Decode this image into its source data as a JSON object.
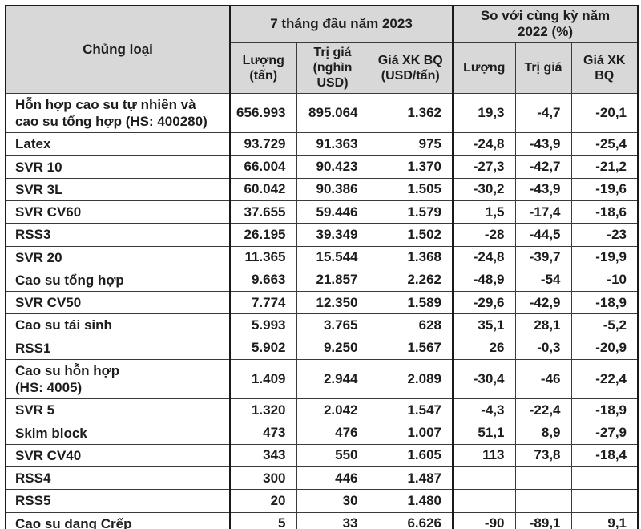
{
  "table": {
    "category_header": "Chủng loại",
    "group_2023": {
      "label": "7 tháng đầu năm 2023",
      "cols": [
        "Lượng\n(tấn)",
        "Trị giá\n(nghìn\nUSD)",
        "Giá XK BQ\n(USD/tấn)"
      ]
    },
    "group_yoy": {
      "label": "So với cùng kỳ năm\n2022 (%)",
      "cols": [
        "Lượng",
        "Trị giá",
        "Giá XK\nBQ"
      ]
    },
    "rows": [
      {
        "label": "Hỗn hợp cao su tự nhiên và\ncao su tổng hợp (HS: 400280)",
        "values": [
          "656.993",
          "895.064",
          "1.362",
          "19,3",
          "-4,7",
          "-20,1"
        ]
      },
      {
        "label": "Latex",
        "values": [
          "93.729",
          "91.363",
          "975",
          "-24,8",
          "-43,9",
          "-25,4"
        ]
      },
      {
        "label": "SVR 10",
        "values": [
          "66.004",
          "90.423",
          "1.370",
          "-27,3",
          "-42,7",
          "-21,2"
        ]
      },
      {
        "label": "SVR 3L",
        "values": [
          "60.042",
          "90.386",
          "1.505",
          "-30,2",
          "-43,9",
          "-19,6"
        ]
      },
      {
        "label": "SVR CV60",
        "values": [
          "37.655",
          "59.446",
          "1.579",
          "1,5",
          "-17,4",
          "-18,6"
        ]
      },
      {
        "label": "RSS3",
        "values": [
          "26.195",
          "39.349",
          "1.502",
          "-28",
          "-44,5",
          "-23"
        ]
      },
      {
        "label": "SVR 20",
        "values": [
          "11.365",
          "15.544",
          "1.368",
          "-24,8",
          "-39,7",
          "-19,9"
        ]
      },
      {
        "label": "Cao su tổng hợp",
        "values": [
          "9.663",
          "21.857",
          "2.262",
          "-48,9",
          "-54",
          "-10"
        ]
      },
      {
        "label": "SVR CV50",
        "values": [
          "7.774",
          "12.350",
          "1.589",
          "-29,6",
          "-42,9",
          "-18,9"
        ]
      },
      {
        "label": "Cao su tái sinh",
        "values": [
          "5.993",
          "3.765",
          "628",
          "35,1",
          "28,1",
          "-5,2"
        ]
      },
      {
        "label": "RSS1",
        "values": [
          "5.902",
          "9.250",
          "1.567",
          "26",
          "-0,3",
          "-20,9"
        ]
      },
      {
        "label": "Cao su hỗn hợp\n(HS: 4005)",
        "values": [
          "1.409",
          "2.944",
          "2.089",
          "-30,4",
          "-46",
          "-22,4"
        ]
      },
      {
        "label": "SVR 5",
        "values": [
          "1.320",
          "2.042",
          "1.547",
          "-4,3",
          "-22,4",
          "-18,9"
        ]
      },
      {
        "label": "Skim block",
        "values": [
          "473",
          "476",
          "1.007",
          "51,1",
          "8,9",
          "-27,9"
        ]
      },
      {
        "label": "SVR CV40",
        "values": [
          "343",
          "550",
          "1.605",
          "113",
          "73,8",
          "-18,4"
        ]
      },
      {
        "label": "RSS4",
        "values": [
          "300",
          "446",
          "1.487",
          "",
          "",
          ""
        ]
      },
      {
        "label": "RSS5",
        "values": [
          "20",
          "30",
          "1.480",
          "",
          "",
          ""
        ]
      },
      {
        "label": "Cao su dạng Crếp",
        "values": [
          "5",
          "33",
          "6.626",
          "-90",
          "-89,1",
          "9,1"
        ]
      }
    ]
  },
  "chart_data": {
    "type": "table",
    "title": "",
    "column_groups": [
      "7 tháng đầu năm 2023",
      "So với cùng kỳ năm 2022 (%)"
    ],
    "columns": [
      "Chủng loại",
      "Lượng (tấn)",
      "Trị giá (nghìn USD)",
      "Giá XK BQ (USD/tấn)",
      "Lượng (%)",
      "Trị giá (%)",
      "Giá XK BQ (%)"
    ],
    "rows": [
      [
        "Hỗn hợp cao su tự nhiên và cao su tổng hợp (HS: 400280)",
        656993,
        895064,
        1362,
        19.3,
        -4.7,
        -20.1
      ],
      [
        "Latex",
        93729,
        91363,
        975,
        -24.8,
        -43.9,
        -25.4
      ],
      [
        "SVR 10",
        66004,
        90423,
        1370,
        -27.3,
        -42.7,
        -21.2
      ],
      [
        "SVR 3L",
        60042,
        90386,
        1505,
        -30.2,
        -43.9,
        -19.6
      ],
      [
        "SVR CV60",
        37655,
        59446,
        1579,
        1.5,
        -17.4,
        -18.6
      ],
      [
        "RSS3",
        26195,
        39349,
        1502,
        -28,
        -44.5,
        -23
      ],
      [
        "SVR 20",
        11365,
        15544,
        1368,
        -24.8,
        -39.7,
        -19.9
      ],
      [
        "Cao su tổng hợp",
        9663,
        21857,
        2262,
        -48.9,
        -54,
        -10
      ],
      [
        "SVR CV50",
        7774,
        12350,
        1589,
        -29.6,
        -42.9,
        -18.9
      ],
      [
        "Cao su tái sinh",
        5993,
        3765,
        628,
        35.1,
        28.1,
        -5.2
      ],
      [
        "RSS1",
        5902,
        9250,
        1567,
        26,
        -0.3,
        -20.9
      ],
      [
        "Cao su hỗn hợp (HS: 4005)",
        1409,
        2944,
        2089,
        -30.4,
        -46,
        -22.4
      ],
      [
        "SVR 5",
        1320,
        2042,
        1547,
        -4.3,
        -22.4,
        -18.9
      ],
      [
        "Skim block",
        473,
        476,
        1007,
        51.1,
        8.9,
        -27.9
      ],
      [
        "SVR CV40",
        343,
        550,
        1605,
        113,
        73.8,
        -18.4
      ],
      [
        "RSS4",
        300,
        446,
        1487,
        null,
        null,
        null
      ],
      [
        "RSS5",
        20,
        30,
        1480,
        null,
        null,
        null
      ],
      [
        "Cao su dạng Crếp",
        5,
        33,
        6626,
        -90,
        -89.1,
        9.1
      ]
    ]
  },
  "colors": {
    "header_bg": "#d8d8d8",
    "border_dark": "#1a1a1a",
    "border_light": "#3a3a3a",
    "text": "#1d1d1d"
  }
}
